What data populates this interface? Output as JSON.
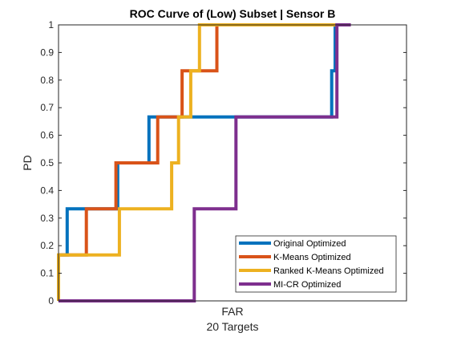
{
  "chart_data": {
    "type": "line",
    "title": "ROC Curve of (Low) Subset | Sensor B",
    "xlabel": "FAR",
    "xlabel_sub": "20 Targets",
    "ylabel": "PD",
    "xlim": [
      0,
      1
    ],
    "ylim": [
      0,
      1
    ],
    "yticks": [
      "0",
      "0.1",
      "0.2",
      "0.3",
      "0.4",
      "0.5",
      "0.6",
      "0.7",
      "0.8",
      "0.9",
      "1"
    ],
    "grid": false,
    "legend_position": "bottom-right",
    "series": [
      {
        "name": "Original Optimized",
        "color": "#0072BD",
        "x": [
          0.0,
          0.025,
          0.025,
          0.07,
          0.07,
          0.17,
          0.17,
          0.26,
          0.26,
          0.785,
          0.785,
          0.795,
          0.795,
          0.8
        ],
        "y": [
          0.1667,
          0.1667,
          0.3333,
          0.3333,
          0.3333,
          0.3333,
          0.5,
          0.5,
          0.6667,
          0.6667,
          0.8333,
          0.8333,
          1.0,
          1.0
        ]
      },
      {
        "name": "K-Means Optimized",
        "color": "#D95319",
        "x": [
          0.0,
          0.08,
          0.08,
          0.165,
          0.165,
          0.285,
          0.285,
          0.355,
          0.355,
          0.455,
          0.455,
          0.5
        ],
        "y": [
          0.1667,
          0.1667,
          0.3333,
          0.3333,
          0.5,
          0.5,
          0.6667,
          0.6667,
          0.8333,
          0.8333,
          1.0,
          1.0
        ]
      },
      {
        "name": "Ranked K-Means Optimized",
        "color": "#EDB120",
        "x": [
          0.0,
          0.0,
          0.175,
          0.175,
          0.325,
          0.325,
          0.345,
          0.345,
          0.38,
          0.38,
          0.405,
          0.405,
          0.8
        ],
        "y": [
          0.0,
          0.1667,
          0.1667,
          0.3333,
          0.3333,
          0.5,
          0.5,
          0.6667,
          0.6667,
          0.8333,
          0.8333,
          1.0,
          1.0
        ]
      },
      {
        "name": "MI-CR Optimized",
        "color": "#7E2F8E",
        "x": [
          0.0,
          0.39,
          0.39,
          0.51,
          0.51,
          0.8,
          0.8,
          0.84
        ],
        "y": [
          0.0,
          0.0,
          0.3333,
          0.3333,
          0.6667,
          0.6667,
          1.0,
          1.0
        ]
      }
    ]
  }
}
